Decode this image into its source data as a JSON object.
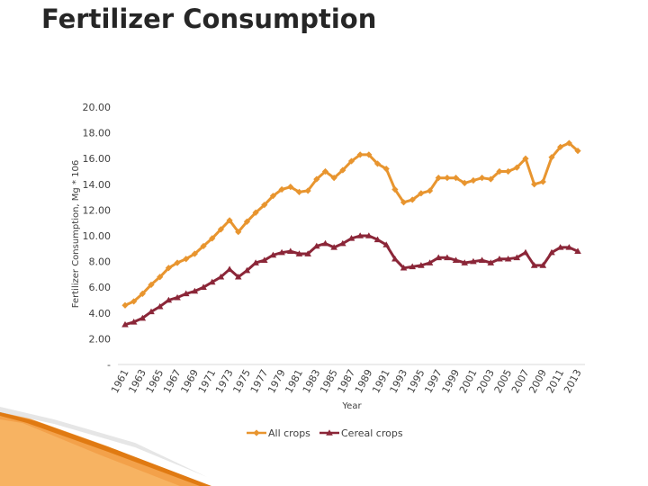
{
  "slide": {
    "title": "Fertilizer Consumption"
  },
  "colors": {
    "all_crops": "#E8952F",
    "cereal_crops": "#8B2638",
    "axis": "#d9d9d9",
    "text": "#404040"
  },
  "chart_data": {
    "type": "line",
    "title": "",
    "xlabel": "Year",
    "ylabel": "Fertilizer Consumption, Mg * 106",
    "ylim": [
      0,
      20
    ],
    "yticks": [
      0,
      2,
      4,
      6,
      8,
      10,
      12,
      14,
      16,
      18,
      20
    ],
    "ytick_labels": [
      "-",
      "2.00",
      "4.00",
      "6.00",
      "8.00",
      "10.00",
      "12.00",
      "14.00",
      "16.00",
      "18.00",
      "20.00"
    ],
    "x": [
      1961,
      1962,
      1963,
      1964,
      1965,
      1966,
      1967,
      1968,
      1969,
      1970,
      1971,
      1972,
      1973,
      1974,
      1975,
      1976,
      1977,
      1978,
      1979,
      1980,
      1981,
      1982,
      1983,
      1984,
      1985,
      1986,
      1987,
      1988,
      1989,
      1990,
      1991,
      1992,
      1993,
      1994,
      1995,
      1996,
      1997,
      1998,
      1999,
      2000,
      2001,
      2002,
      2003,
      2004,
      2005,
      2006,
      2007,
      2008,
      2009,
      2010,
      2011,
      2012,
      2013
    ],
    "xtick_labels": [
      "1961",
      "1963",
      "1965",
      "1967",
      "1969",
      "1971",
      "1973",
      "1975",
      "1977",
      "1979",
      "1981",
      "1983",
      "1985",
      "1987",
      "1989",
      "1991",
      "1993",
      "1995",
      "1997",
      "1999",
      "2001",
      "2003",
      "2005",
      "2007",
      "2009",
      "2011",
      "2013"
    ],
    "legend_position": "bottom",
    "series": [
      {
        "name": "All crops",
        "marker": "diamond",
        "values": [
          4.6,
          4.9,
          5.5,
          6.2,
          6.8,
          7.5,
          7.9,
          8.2,
          8.6,
          9.2,
          9.8,
          10.5,
          11.2,
          10.3,
          11.1,
          11.8,
          12.4,
          13.1,
          13.6,
          13.8,
          13.4,
          13.5,
          14.4,
          15.0,
          14.5,
          15.1,
          15.8,
          16.3,
          16.3,
          15.6,
          15.2,
          13.6,
          12.6,
          12.8,
          13.3,
          13.5,
          14.5,
          14.5,
          14.5,
          14.1,
          14.3,
          14.5,
          14.4,
          15.0,
          15.0,
          15.3,
          16.0,
          14.0,
          14.2,
          16.1,
          16.9,
          17.2,
          16.6
        ]
      },
      {
        "name": "Cereal crops",
        "marker": "triangle",
        "values": [
          3.1,
          3.3,
          3.6,
          4.1,
          4.5,
          5.0,
          5.2,
          5.5,
          5.7,
          6.0,
          6.4,
          6.8,
          7.4,
          6.8,
          7.3,
          7.9,
          8.1,
          8.5,
          8.7,
          8.8,
          8.6,
          8.6,
          9.2,
          9.4,
          9.1,
          9.4,
          9.8,
          10.0,
          10.0,
          9.7,
          9.3,
          8.2,
          7.5,
          7.6,
          7.7,
          7.9,
          8.3,
          8.3,
          8.1,
          7.9,
          8.0,
          8.1,
          7.9,
          8.2,
          8.2,
          8.3,
          8.7,
          7.7,
          7.7,
          8.7,
          9.1,
          9.1,
          8.8
        ]
      }
    ]
  }
}
